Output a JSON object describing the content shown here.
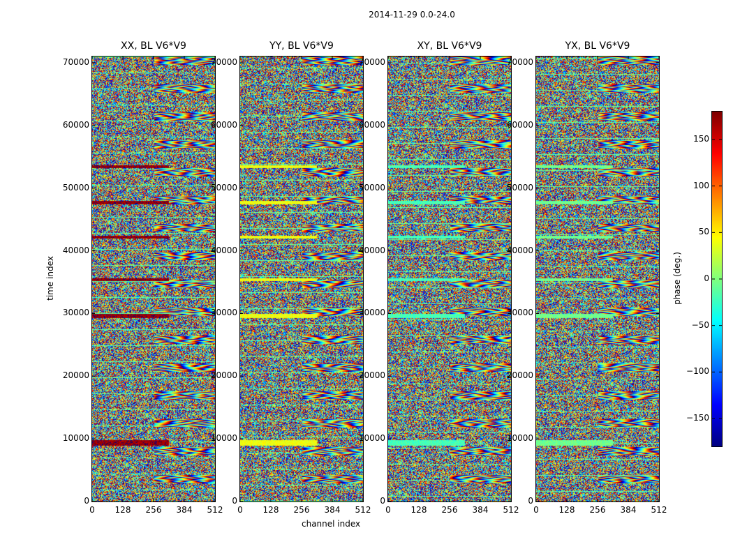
{
  "figure_title": "2014-11-29 0.0-24.0",
  "chart_data": {
    "type": "heatmap",
    "title": "2014-11-29 0.0-24.0",
    "xlabel": "channel index",
    "ylabel": "time index",
    "xlim": [
      0,
      512
    ],
    "ylim": [
      0,
      71000
    ],
    "x_ticks": [
      "0",
      "128",
      "256",
      "384",
      "512"
    ],
    "y_ticks": [
      "0",
      "10000",
      "20000",
      "30000",
      "40000",
      "50000",
      "60000",
      "70000"
    ],
    "panels": [
      {
        "title": "XX, BL V6*V9",
        "band_phase": 170
      },
      {
        "title": "YY, BL V6*V9",
        "band_phase": 40
      },
      {
        "title": "XY, BL V6*V9",
        "band_phase": -20
      },
      {
        "title": "YX, BL V6*V9",
        "band_phase": -5
      }
    ],
    "colorbar": {
      "label": "phase (deg.)",
      "range": [
        -180,
        180
      ],
      "ticks": [
        "150",
        "100",
        "50",
        "0",
        "−50",
        "−100",
        "−150"
      ],
      "colormap": "jet"
    }
  }
}
